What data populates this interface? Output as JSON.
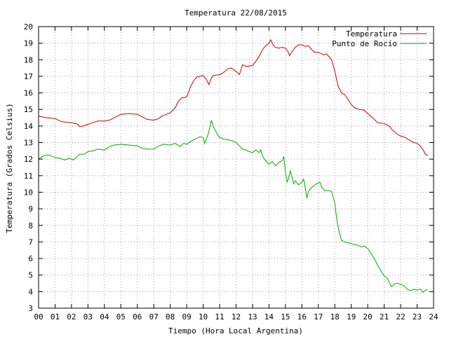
{
  "chart_data": {
    "type": "line",
    "title": "Temperatura 22/08/2015",
    "xlabel": "Tiempo (Hora Local Argentina)",
    "ylabel": "Temperatura (Grados Celsius)",
    "xlim": [
      0,
      24
    ],
    "ylim": [
      3,
      20
    ],
    "grid": true,
    "legend_position": "top-right",
    "x_ticks": [
      {
        "value": 0,
        "label": "00"
      },
      {
        "value": 1,
        "label": "01"
      },
      {
        "value": 2,
        "label": "02"
      },
      {
        "value": 3,
        "label": "03"
      },
      {
        "value": 4,
        "label": "04"
      },
      {
        "value": 5,
        "label": "05"
      },
      {
        "value": 6,
        "label": "06"
      },
      {
        "value": 7,
        "label": "07"
      },
      {
        "value": 8,
        "label": "08"
      },
      {
        "value": 9,
        "label": "09"
      },
      {
        "value": 10,
        "label": "10"
      },
      {
        "value": 11,
        "label": "11"
      },
      {
        "value": 12,
        "label": "12"
      },
      {
        "value": 13,
        "label": "13"
      },
      {
        "value": 14,
        "label": "14"
      },
      {
        "value": 15,
        "label": "15"
      },
      {
        "value": 16,
        "label": "16"
      },
      {
        "value": 17,
        "label": "17"
      },
      {
        "value": 18,
        "label": "18"
      },
      {
        "value": 19,
        "label": "19"
      },
      {
        "value": 20,
        "label": "20"
      },
      {
        "value": 21,
        "label": "21"
      },
      {
        "value": 22,
        "label": "22"
      },
      {
        "value": 23,
        "label": "23"
      },
      {
        "value": 24,
        "label": "24"
      }
    ],
    "y_ticks": [
      3,
      4,
      5,
      6,
      7,
      8,
      9,
      10,
      11,
      12,
      13,
      14,
      15,
      16,
      17,
      18,
      19,
      20
    ],
    "series": [
      {
        "name": "Temperatura",
        "color": "#cc0000",
        "points": [
          [
            0.0,
            14.6
          ],
          [
            0.5,
            14.5
          ],
          [
            1.0,
            14.45
          ],
          [
            1.3,
            14.3
          ],
          [
            1.5,
            14.25
          ],
          [
            2.0,
            14.2
          ],
          [
            2.4,
            14.1
          ],
          [
            2.5,
            13.95
          ],
          [
            2.7,
            14.0
          ],
          [
            3.0,
            14.1
          ],
          [
            3.3,
            14.2
          ],
          [
            3.6,
            14.3
          ],
          [
            4.0,
            14.3
          ],
          [
            4.3,
            14.35
          ],
          [
            4.5,
            14.45
          ],
          [
            4.8,
            14.6
          ],
          [
            5.0,
            14.7
          ],
          [
            5.5,
            14.75
          ],
          [
            6.0,
            14.7
          ],
          [
            6.3,
            14.55
          ],
          [
            6.6,
            14.4
          ],
          [
            7.0,
            14.35
          ],
          [
            7.3,
            14.45
          ],
          [
            7.5,
            14.6
          ],
          [
            8.0,
            14.8
          ],
          [
            8.3,
            15.1
          ],
          [
            8.5,
            15.5
          ],
          [
            8.7,
            15.7
          ],
          [
            9.0,
            15.75
          ],
          [
            9.2,
            16.3
          ],
          [
            9.4,
            16.7
          ],
          [
            9.6,
            16.95
          ],
          [
            9.8,
            17.0
          ],
          [
            10.0,
            17.05
          ],
          [
            10.2,
            16.8
          ],
          [
            10.35,
            16.5
          ],
          [
            10.5,
            16.9
          ],
          [
            10.6,
            17.05
          ],
          [
            11.0,
            17.1
          ],
          [
            11.2,
            17.2
          ],
          [
            11.5,
            17.45
          ],
          [
            11.7,
            17.5
          ],
          [
            12.0,
            17.3
          ],
          [
            12.2,
            17.1
          ],
          [
            12.3,
            17.4
          ],
          [
            12.4,
            17.7
          ],
          [
            12.6,
            17.6
          ],
          [
            13.0,
            17.65
          ],
          [
            13.2,
            17.9
          ],
          [
            13.4,
            18.2
          ],
          [
            13.6,
            18.6
          ],
          [
            13.8,
            18.85
          ],
          [
            14.0,
            19.0
          ],
          [
            14.1,
            19.2
          ],
          [
            14.25,
            18.9
          ],
          [
            14.4,
            18.75
          ],
          [
            14.6,
            18.7
          ],
          [
            14.8,
            18.75
          ],
          [
            15.0,
            18.7
          ],
          [
            15.15,
            18.5
          ],
          [
            15.25,
            18.25
          ],
          [
            15.4,
            18.5
          ],
          [
            15.6,
            18.75
          ],
          [
            15.8,
            18.9
          ],
          [
            16.0,
            18.9
          ],
          [
            16.2,
            18.8
          ],
          [
            16.4,
            18.85
          ],
          [
            16.6,
            18.6
          ],
          [
            16.8,
            18.45
          ],
          [
            17.0,
            18.45
          ],
          [
            17.3,
            18.3
          ],
          [
            17.5,
            18.35
          ],
          [
            17.8,
            18.0
          ],
          [
            18.0,
            17.3
          ],
          [
            18.2,
            16.4
          ],
          [
            18.4,
            16.0
          ],
          [
            18.6,
            15.9
          ],
          [
            18.8,
            15.6
          ],
          [
            19.0,
            15.3
          ],
          [
            19.2,
            15.1
          ],
          [
            19.5,
            15.0
          ],
          [
            19.8,
            14.95
          ],
          [
            20.0,
            14.75
          ],
          [
            20.3,
            14.5
          ],
          [
            20.6,
            14.2
          ],
          [
            21.0,
            14.15
          ],
          [
            21.3,
            14.0
          ],
          [
            21.5,
            13.75
          ],
          [
            21.8,
            13.5
          ],
          [
            22.0,
            13.4
          ],
          [
            22.3,
            13.3
          ],
          [
            22.6,
            13.1
          ],
          [
            22.8,
            13.0
          ],
          [
            23.0,
            12.95
          ],
          [
            23.2,
            12.8
          ],
          [
            23.4,
            12.5
          ],
          [
            23.5,
            12.3
          ],
          [
            23.65,
            12.2
          ]
        ]
      },
      {
        "name": "Punto de Rocío",
        "color": "#00aa00",
        "points": [
          [
            0.0,
            12.0
          ],
          [
            0.3,
            12.2
          ],
          [
            0.6,
            12.25
          ],
          [
            1.0,
            12.1
          ],
          [
            1.3,
            12.05
          ],
          [
            1.6,
            11.95
          ],
          [
            1.9,
            12.05
          ],
          [
            2.1,
            11.95
          ],
          [
            2.3,
            12.1
          ],
          [
            2.5,
            12.3
          ],
          [
            2.8,
            12.3
          ],
          [
            3.0,
            12.45
          ],
          [
            3.3,
            12.5
          ],
          [
            3.6,
            12.6
          ],
          [
            4.0,
            12.55
          ],
          [
            4.3,
            12.75
          ],
          [
            4.6,
            12.85
          ],
          [
            5.0,
            12.9
          ],
          [
            5.5,
            12.85
          ],
          [
            6.0,
            12.8
          ],
          [
            6.3,
            12.65
          ],
          [
            6.6,
            12.6
          ],
          [
            7.0,
            12.6
          ],
          [
            7.3,
            12.8
          ],
          [
            7.6,
            12.9
          ],
          [
            8.0,
            12.85
          ],
          [
            8.3,
            12.95
          ],
          [
            8.6,
            12.75
          ],
          [
            8.8,
            12.95
          ],
          [
            9.0,
            12.9
          ],
          [
            9.3,
            13.1
          ],
          [
            9.6,
            13.25
          ],
          [
            9.8,
            13.35
          ],
          [
            10.0,
            13.3
          ],
          [
            10.1,
            12.95
          ],
          [
            10.3,
            13.5
          ],
          [
            10.4,
            13.9
          ],
          [
            10.5,
            14.35
          ],
          [
            10.6,
            14.0
          ],
          [
            10.8,
            13.6
          ],
          [
            11.0,
            13.3
          ],
          [
            11.3,
            13.2
          ],
          [
            11.6,
            13.15
          ],
          [
            11.8,
            13.1
          ],
          [
            12.0,
            13.0
          ],
          [
            12.2,
            12.8
          ],
          [
            12.4,
            12.6
          ],
          [
            12.6,
            12.55
          ],
          [
            12.8,
            12.45
          ],
          [
            13.0,
            12.4
          ],
          [
            13.2,
            12.55
          ],
          [
            13.4,
            12.4
          ],
          [
            13.5,
            12.55
          ],
          [
            13.6,
            12.2
          ],
          [
            13.8,
            11.9
          ],
          [
            14.0,
            11.7
          ],
          [
            14.2,
            11.85
          ],
          [
            14.4,
            11.6
          ],
          [
            14.6,
            11.8
          ],
          [
            14.8,
            11.9
          ],
          [
            14.9,
            12.15
          ],
          [
            15.0,
            11.2
          ],
          [
            15.1,
            10.6
          ],
          [
            15.2,
            10.9
          ],
          [
            15.3,
            11.3
          ],
          [
            15.4,
            10.9
          ],
          [
            15.5,
            10.5
          ],
          [
            15.6,
            10.7
          ],
          [
            15.8,
            10.45
          ],
          [
            16.0,
            10.6
          ],
          [
            16.1,
            10.8
          ],
          [
            16.2,
            10.3
          ],
          [
            16.3,
            9.65
          ],
          [
            16.4,
            10.05
          ],
          [
            16.6,
            10.3
          ],
          [
            16.8,
            10.45
          ],
          [
            16.95,
            10.55
          ],
          [
            17.1,
            10.6
          ],
          [
            17.2,
            10.3
          ],
          [
            17.4,
            10.1
          ],
          [
            17.6,
            10.1
          ],
          [
            17.8,
            10.05
          ],
          [
            18.0,
            9.35
          ],
          [
            18.1,
            8.5
          ],
          [
            18.2,
            7.9
          ],
          [
            18.4,
            7.1
          ],
          [
            18.6,
            7.0
          ],
          [
            18.8,
            6.95
          ],
          [
            19.0,
            6.9
          ],
          [
            19.2,
            6.85
          ],
          [
            19.4,
            6.8
          ],
          [
            19.6,
            6.7
          ],
          [
            19.8,
            6.75
          ],
          [
            20.0,
            6.6
          ],
          [
            20.2,
            6.3
          ],
          [
            20.4,
            6.0
          ],
          [
            20.6,
            5.6
          ],
          [
            20.8,
            5.25
          ],
          [
            21.0,
            4.95
          ],
          [
            21.2,
            4.8
          ],
          [
            21.3,
            4.55
          ],
          [
            21.45,
            4.3
          ],
          [
            21.6,
            4.45
          ],
          [
            21.8,
            4.5
          ],
          [
            22.0,
            4.45
          ],
          [
            22.2,
            4.35
          ],
          [
            22.4,
            4.15
          ],
          [
            22.6,
            4.05
          ],
          [
            22.8,
            4.15
          ],
          [
            23.0,
            4.1
          ],
          [
            23.2,
            4.15
          ],
          [
            23.35,
            3.95
          ],
          [
            23.5,
            4.1
          ],
          [
            23.65,
            4.1
          ]
        ]
      }
    ]
  }
}
